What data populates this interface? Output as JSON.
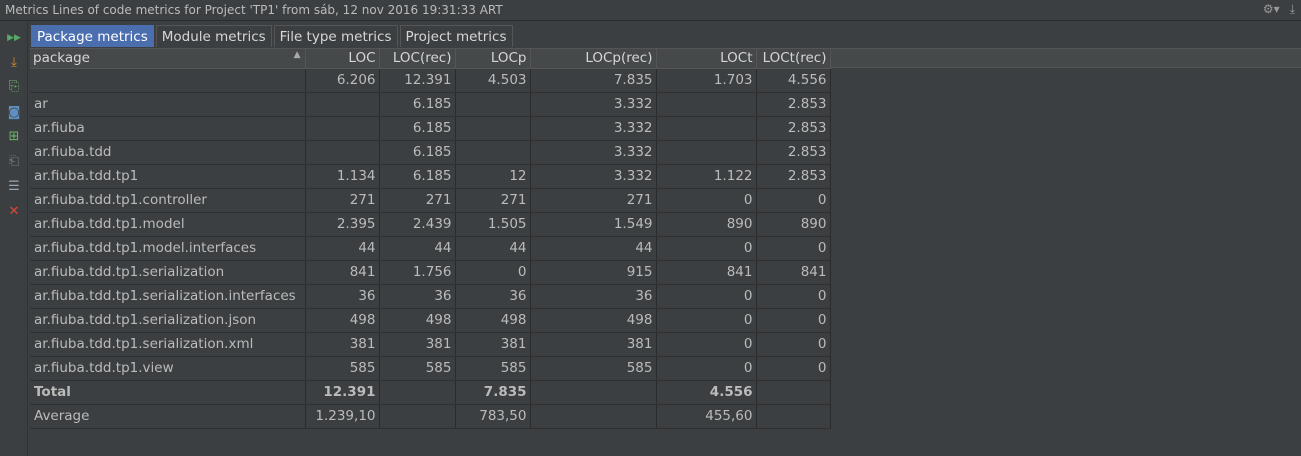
{
  "window": {
    "title": "Metrics Lines of code metrics for Project 'TP1' from sáb, 12 nov 2016 19:31:33 ART",
    "icons": [
      "gear-icon",
      "hide-icon"
    ]
  },
  "toolbar": {
    "tools": [
      {
        "name": "rerun-icon",
        "glyph": "▶▶",
        "color": "#59a869"
      },
      {
        "name": "export-icon",
        "glyph": "⤓",
        "color": "#e08b2a"
      },
      {
        "name": "open-file-icon",
        "glyph": "⎘",
        "color": "#6bb56b"
      },
      {
        "name": "snapshot-icon",
        "glyph": "◙",
        "color": "#5f8fc0"
      },
      {
        "name": "diff-icon",
        "glyph": "⊞",
        "color": "#6bb56b"
      },
      {
        "name": "compare-icon",
        "glyph": "⎗",
        "color": "#777777"
      },
      {
        "name": "group-icon",
        "glyph": "☰",
        "color": "#9aa6b2"
      },
      {
        "name": "close-icon",
        "glyph": "✕",
        "color": "#d84a3a"
      }
    ]
  },
  "tabs": [
    {
      "label": "Package metrics",
      "active": true
    },
    {
      "label": "Module metrics",
      "active": false
    },
    {
      "label": "File type metrics",
      "active": false
    },
    {
      "label": "Project metrics",
      "active": false
    }
  ],
  "table": {
    "columns": [
      "package",
      "LOC",
      "LOC(rec)",
      "LOCp",
      "LOCp(rec)",
      "LOCt",
      "LOCt(rec)"
    ],
    "rows": [
      [
        "",
        "6.206",
        "12.391",
        "4.503",
        "7.835",
        "1.703",
        "4.556"
      ],
      [
        "ar",
        "",
        "6.185",
        "",
        "3.332",
        "",
        "2.853"
      ],
      [
        "ar.fiuba",
        "",
        "6.185",
        "",
        "3.332",
        "",
        "2.853"
      ],
      [
        "ar.fiuba.tdd",
        "",
        "6.185",
        "",
        "3.332",
        "",
        "2.853"
      ],
      [
        "ar.fiuba.tdd.tp1",
        "1.134",
        "6.185",
        "12",
        "3.332",
        "1.122",
        "2.853"
      ],
      [
        "ar.fiuba.tdd.tp1.controller",
        "271",
        "271",
        "271",
        "271",
        "0",
        "0"
      ],
      [
        "ar.fiuba.tdd.tp1.model",
        "2.395",
        "2.439",
        "1.505",
        "1.549",
        "890",
        "890"
      ],
      [
        "ar.fiuba.tdd.tp1.model.interfaces",
        "44",
        "44",
        "44",
        "44",
        "0",
        "0"
      ],
      [
        "ar.fiuba.tdd.tp1.serialization",
        "841",
        "1.756",
        "0",
        "915",
        "841",
        "841"
      ],
      [
        "ar.fiuba.tdd.tp1.serialization.interfaces",
        "36",
        "36",
        "36",
        "36",
        "0",
        "0"
      ],
      [
        "ar.fiuba.tdd.tp1.serialization.json",
        "498",
        "498",
        "498",
        "498",
        "0",
        "0"
      ],
      [
        "ar.fiuba.tdd.tp1.serialization.xml",
        "381",
        "381",
        "381",
        "381",
        "0",
        "0"
      ],
      [
        "ar.fiuba.tdd.tp1.view",
        "585",
        "585",
        "585",
        "585",
        "0",
        "0"
      ]
    ],
    "total": [
      "Total",
      "12.391",
      "",
      "7.835",
      "",
      "4.556",
      ""
    ],
    "average": [
      "Average",
      "1.239,10",
      "",
      "783,50",
      "",
      "455,60",
      ""
    ]
  }
}
